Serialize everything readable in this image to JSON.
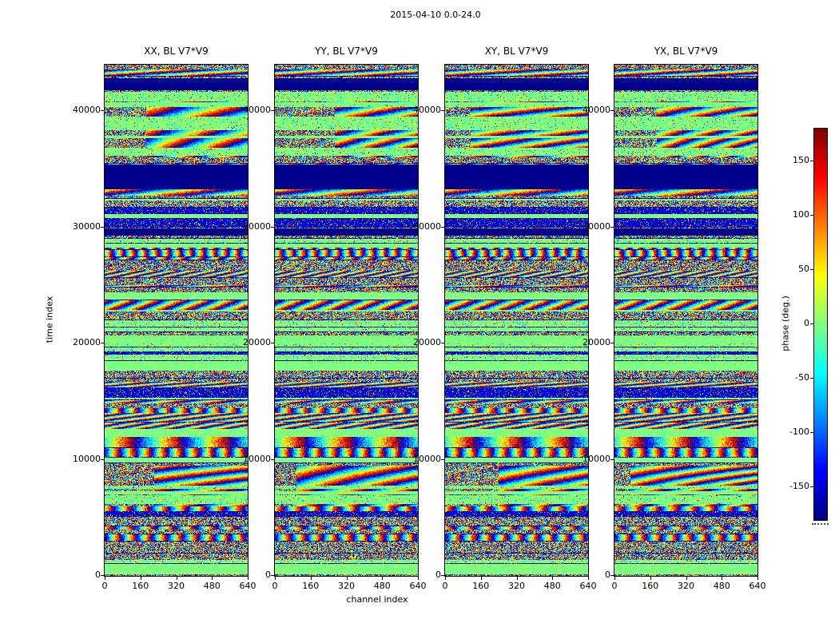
{
  "chart_data": {
    "type": "heatmap",
    "title": "2015-04-10 0.0-24.0",
    "xlabel": "channel index",
    "ylabel": "time index",
    "panels": [
      {
        "title": "XX, BL V7*V9"
      },
      {
        "title": "YY, BL V7*V9"
      },
      {
        "title": "XY, BL V7*V9"
      },
      {
        "title": "YX, BL V7*V9"
      }
    ],
    "x_range": [
      0,
      640
    ],
    "x_ticks": [
      0,
      160,
      320,
      480,
      640
    ],
    "y_range": [
      0,
      44000
    ],
    "y_ticks": [
      0,
      10000,
      20000,
      30000,
      40000
    ],
    "colorbar": {
      "label": "phase (deg.)",
      "range": [
        -180,
        180
      ],
      "ticks": [
        150,
        100,
        50,
        0,
        -50,
        -100,
        -150
      ],
      "colormap": "jet"
    },
    "flagged_time_bands": [
      [
        33300,
        35400
      ],
      [
        41800,
        42800
      ],
      [
        29300,
        29900
      ]
    ],
    "fringe_time_bands": [
      [
        36000,
        41000
      ],
      [
        6000,
        9500
      ]
    ],
    "colors": {
      "flagged": "#000080",
      "zero_phase": "#80ff80",
      "background": "#ffffff",
      "frame": "#000000"
    },
    "description": "Four waterfall panels of interferometric visibility phase (jet colormap) vs time index and channel index for baseline V7*V9 polarizations XX, YY, XY, YX; dense pseudo-random phase speckle with horizontal flagged (solid dark blue) bands, smooth near-zero-phase green bands, and curved rainbow fringe regions."
  }
}
